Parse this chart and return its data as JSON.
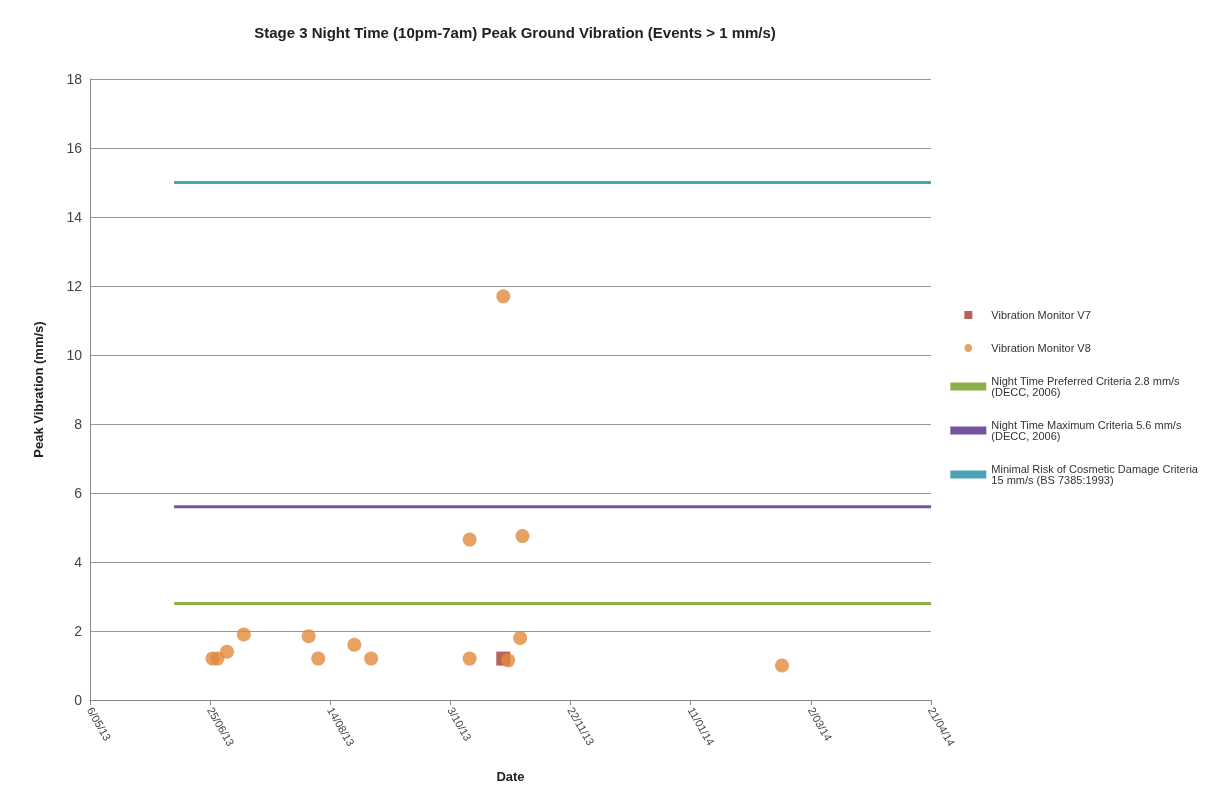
{
  "chart_data": {
    "type": "scatter",
    "title": "Stage 3 Night Time (10pm-7am) Peak Ground Vibration (Events > 1 mm/s)",
    "xlabel": "Date",
    "ylabel": "Peak Vibration (mm/s)",
    "xlim": [
      "2013-05-06",
      "2014-04-21"
    ],
    "xticks": [
      {
        "value": "2013-05-06",
        "label": "6/05/13"
      },
      {
        "value": "2013-06-25",
        "label": "25/06/13"
      },
      {
        "value": "2013-08-14",
        "label": "14/08/13"
      },
      {
        "value": "2013-10-03",
        "label": "3/10/13"
      },
      {
        "value": "2013-11-22",
        "label": "22/11/13"
      },
      {
        "value": "2014-01-11",
        "label": "11/01/14"
      },
      {
        "value": "2014-03-02",
        "label": "2/03/14"
      },
      {
        "value": "2014-04-21",
        "label": "21/04/14"
      }
    ],
    "ylim": [
      0,
      18
    ],
    "yticks": [
      0,
      2,
      4,
      6,
      8,
      10,
      12,
      14,
      16,
      18
    ],
    "grid": "y",
    "legend": "right",
    "series": [
      {
        "name": "Vibration Monitor V7",
        "marker": "square",
        "color": "#a63c32",
        "x": [
          "2013-10-25"
        ],
        "values": [
          1.2
        ]
      },
      {
        "name": "Vibration Monitor V8",
        "marker": "circle",
        "color": "#e08a3c",
        "x": [
          "2013-06-26",
          "2013-06-28",
          "2013-07-02",
          "2013-07-09",
          "2013-08-05",
          "2013-08-09",
          "2013-08-24",
          "2013-08-31",
          "2013-10-11",
          "2013-10-11",
          "2013-10-25",
          "2013-10-27",
          "2013-11-01",
          "2013-11-02",
          "2014-02-18"
        ],
        "values": [
          1.2,
          1.2,
          1.4,
          1.9,
          1.85,
          1.2,
          1.6,
          1.2,
          1.2,
          4.65,
          11.7,
          1.15,
          1.8,
          4.75,
          1.0
        ]
      },
      {
        "name": "Night Time Preferred Criteria 2.8 mm/s (DECC, 2006)",
        "type": "line",
        "marker": "none",
        "color": "#8db04a",
        "x": [
          "2013-06-10",
          "2014-04-21"
        ],
        "values": [
          2.8,
          2.8
        ]
      },
      {
        "name": "Night Time Maximum Criteria 5.6 mm/s (DECC, 2006)",
        "type": "line",
        "marker": "none",
        "color": "#7352a0",
        "x": [
          "2013-06-10",
          "2014-04-21"
        ],
        "values": [
          5.6,
          5.6
        ]
      },
      {
        "name": "Minimal Risk of Cosmetic Damage Criteria 15 mm/s (BS 7385:1993)",
        "type": "line",
        "marker": "none",
        "color": "#4ba3ba",
        "x": [
          "2013-06-10",
          "2014-04-21"
        ],
        "values": [
          15,
          15
        ]
      }
    ]
  }
}
